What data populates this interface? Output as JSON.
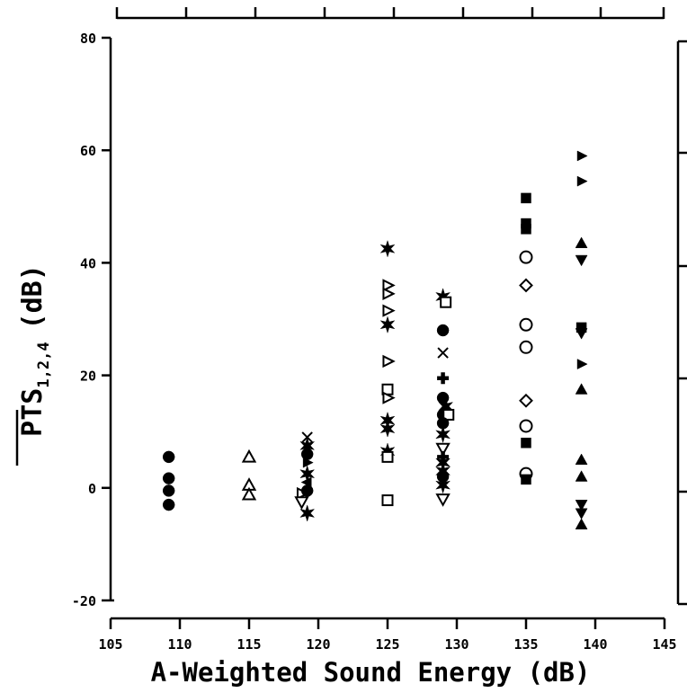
{
  "chart_data": {
    "type": "scatter",
    "xlabel": "A-Weighted Sound Energy (dB)",
    "ylabel_main": "PTS",
    "ylabel_subscript": "1,2,4",
    "ylabel_unit": "(dB)",
    "xlim": [
      105,
      145
    ],
    "ylim": [
      -20,
      80
    ],
    "xticks": [
      "105",
      "110",
      "115",
      "120",
      "125",
      "130",
      "135",
      "140",
      "145"
    ],
    "yticks": [
      "-20",
      "0",
      "20",
      "40",
      "60",
      "80"
    ],
    "colors": {
      "ink": "#000000",
      "background": "#ffffff"
    },
    "points": [
      {
        "x": 109.2,
        "y": 5.5,
        "marker": "filled-circle"
      },
      {
        "x": 109.2,
        "y": 1.7,
        "marker": "filled-circle"
      },
      {
        "x": 109.2,
        "y": -0.5,
        "marker": "filled-circle"
      },
      {
        "x": 109.2,
        "y": -3.0,
        "marker": "filled-circle"
      },
      {
        "x": 115.0,
        "y": 5.5,
        "marker": "open-triangle-up"
      },
      {
        "x": 115.0,
        "y": 0.5,
        "marker": "open-triangle-up"
      },
      {
        "x": 115.0,
        "y": -1.2,
        "marker": "open-triangle-up"
      },
      {
        "x": 119.2,
        "y": 9.0,
        "marker": "x"
      },
      {
        "x": 119.2,
        "y": 7.5,
        "marker": "filled-star"
      },
      {
        "x": 119.2,
        "y": 6.0,
        "marker": "filled-circle"
      },
      {
        "x": 119.2,
        "y": 4.5,
        "marker": "filled-triangle-right"
      },
      {
        "x": 119.2,
        "y": 2.5,
        "marker": "filled-star"
      },
      {
        "x": 119.2,
        "y": 1.0,
        "marker": "filled-triangle-left"
      },
      {
        "x": 118.8,
        "y": -1.0,
        "marker": "open-triangle-right"
      },
      {
        "x": 119.2,
        "y": -0.5,
        "marker": "filled-circle"
      },
      {
        "x": 118.8,
        "y": -2.5,
        "marker": "open-triangle-down"
      },
      {
        "x": 119.2,
        "y": -4.5,
        "marker": "filled-star"
      },
      {
        "x": 125.0,
        "y": 42.5,
        "marker": "filled-star"
      },
      {
        "x": 125.0,
        "y": 36.0,
        "marker": "open-triangle-right"
      },
      {
        "x": 125.0,
        "y": 34.5,
        "marker": "open-triangle-right"
      },
      {
        "x": 125.0,
        "y": 31.5,
        "marker": "open-triangle-right"
      },
      {
        "x": 125.0,
        "y": 29.0,
        "marker": "filled-star"
      },
      {
        "x": 125.0,
        "y": 22.5,
        "marker": "open-triangle-right"
      },
      {
        "x": 125.0,
        "y": 17.5,
        "marker": "open-square"
      },
      {
        "x": 125.0,
        "y": 16.0,
        "marker": "open-triangle-right"
      },
      {
        "x": 125.0,
        "y": 12.0,
        "marker": "filled-star"
      },
      {
        "x": 125.0,
        "y": 10.5,
        "marker": "filled-star"
      },
      {
        "x": 125.0,
        "y": 6.5,
        "marker": "filled-star"
      },
      {
        "x": 125.0,
        "y": 5.5,
        "marker": "open-square"
      },
      {
        "x": 125.0,
        "y": -2.2,
        "marker": "open-square"
      },
      {
        "x": 129.0,
        "y": 34.0,
        "marker": "filled-star"
      },
      {
        "x": 129.2,
        "y": 33.0,
        "marker": "open-square"
      },
      {
        "x": 129.0,
        "y": 28.0,
        "marker": "filled-circle"
      },
      {
        "x": 129.0,
        "y": 24.0,
        "marker": "x"
      },
      {
        "x": 129.0,
        "y": 19.5,
        "marker": "filled-cross"
      },
      {
        "x": 129.0,
        "y": 16.0,
        "marker": "filled-circle"
      },
      {
        "x": 129.2,
        "y": 14.5,
        "marker": "filled-star"
      },
      {
        "x": 129.0,
        "y": 13.0,
        "marker": "filled-circle"
      },
      {
        "x": 129.4,
        "y": 13.0,
        "marker": "open-square"
      },
      {
        "x": 129.0,
        "y": 11.5,
        "marker": "filled-circle"
      },
      {
        "x": 129.0,
        "y": 9.5,
        "marker": "filled-star"
      },
      {
        "x": 129.0,
        "y": 7.0,
        "marker": "open-triangle-down"
      },
      {
        "x": 129.0,
        "y": 5.5,
        "marker": "filled-cross"
      },
      {
        "x": 129.0,
        "y": 4.5,
        "marker": "filled-star"
      },
      {
        "x": 129.0,
        "y": 3.0,
        "marker": "filled-star"
      },
      {
        "x": 129.0,
        "y": 2.0,
        "marker": "filled-circle"
      },
      {
        "x": 129.0,
        "y": 0.5,
        "marker": "filled-star"
      },
      {
        "x": 129.0,
        "y": -2.0,
        "marker": "open-triangle-down"
      },
      {
        "x": 135.0,
        "y": 51.5,
        "marker": "filled-square"
      },
      {
        "x": 135.0,
        "y": 47.0,
        "marker": "filled-square"
      },
      {
        "x": 135.0,
        "y": 46.0,
        "marker": "filled-square"
      },
      {
        "x": 135.0,
        "y": 41.0,
        "marker": "open-circle"
      },
      {
        "x": 135.0,
        "y": 36.0,
        "marker": "open-diamond"
      },
      {
        "x": 135.0,
        "y": 29.0,
        "marker": "open-circle"
      },
      {
        "x": 135.0,
        "y": 25.0,
        "marker": "open-circle"
      },
      {
        "x": 135.0,
        "y": 15.5,
        "marker": "open-diamond"
      },
      {
        "x": 135.0,
        "y": 11.0,
        "marker": "open-circle"
      },
      {
        "x": 135.0,
        "y": 8.0,
        "marker": "filled-square"
      },
      {
        "x": 135.0,
        "y": 2.5,
        "marker": "open-circle"
      },
      {
        "x": 135.0,
        "y": 1.5,
        "marker": "filled-square"
      },
      {
        "x": 139.0,
        "y": 59.0,
        "marker": "filled-triangle-right"
      },
      {
        "x": 139.0,
        "y": 54.5,
        "marker": "filled-triangle-right"
      },
      {
        "x": 139.0,
        "y": 43.5,
        "marker": "filled-triangle-up"
      },
      {
        "x": 139.0,
        "y": 40.5,
        "marker": "filled-triangle-down"
      },
      {
        "x": 139.0,
        "y": 28.5,
        "marker": "filled-square"
      },
      {
        "x": 139.0,
        "y": 27.5,
        "marker": "filled-triangle-down"
      },
      {
        "x": 139.0,
        "y": 22.0,
        "marker": "filled-triangle-right"
      },
      {
        "x": 139.0,
        "y": 17.5,
        "marker": "filled-triangle-up"
      },
      {
        "x": 139.0,
        "y": 5.0,
        "marker": "filled-triangle-up"
      },
      {
        "x": 139.0,
        "y": 2.0,
        "marker": "filled-triangle-up"
      },
      {
        "x": 139.0,
        "y": -3.0,
        "marker": "filled-triangle-down"
      },
      {
        "x": 139.0,
        "y": -4.5,
        "marker": "filled-triangle-down"
      },
      {
        "x": 139.0,
        "y": -6.5,
        "marker": "filled-triangle-up"
      }
    ]
  }
}
